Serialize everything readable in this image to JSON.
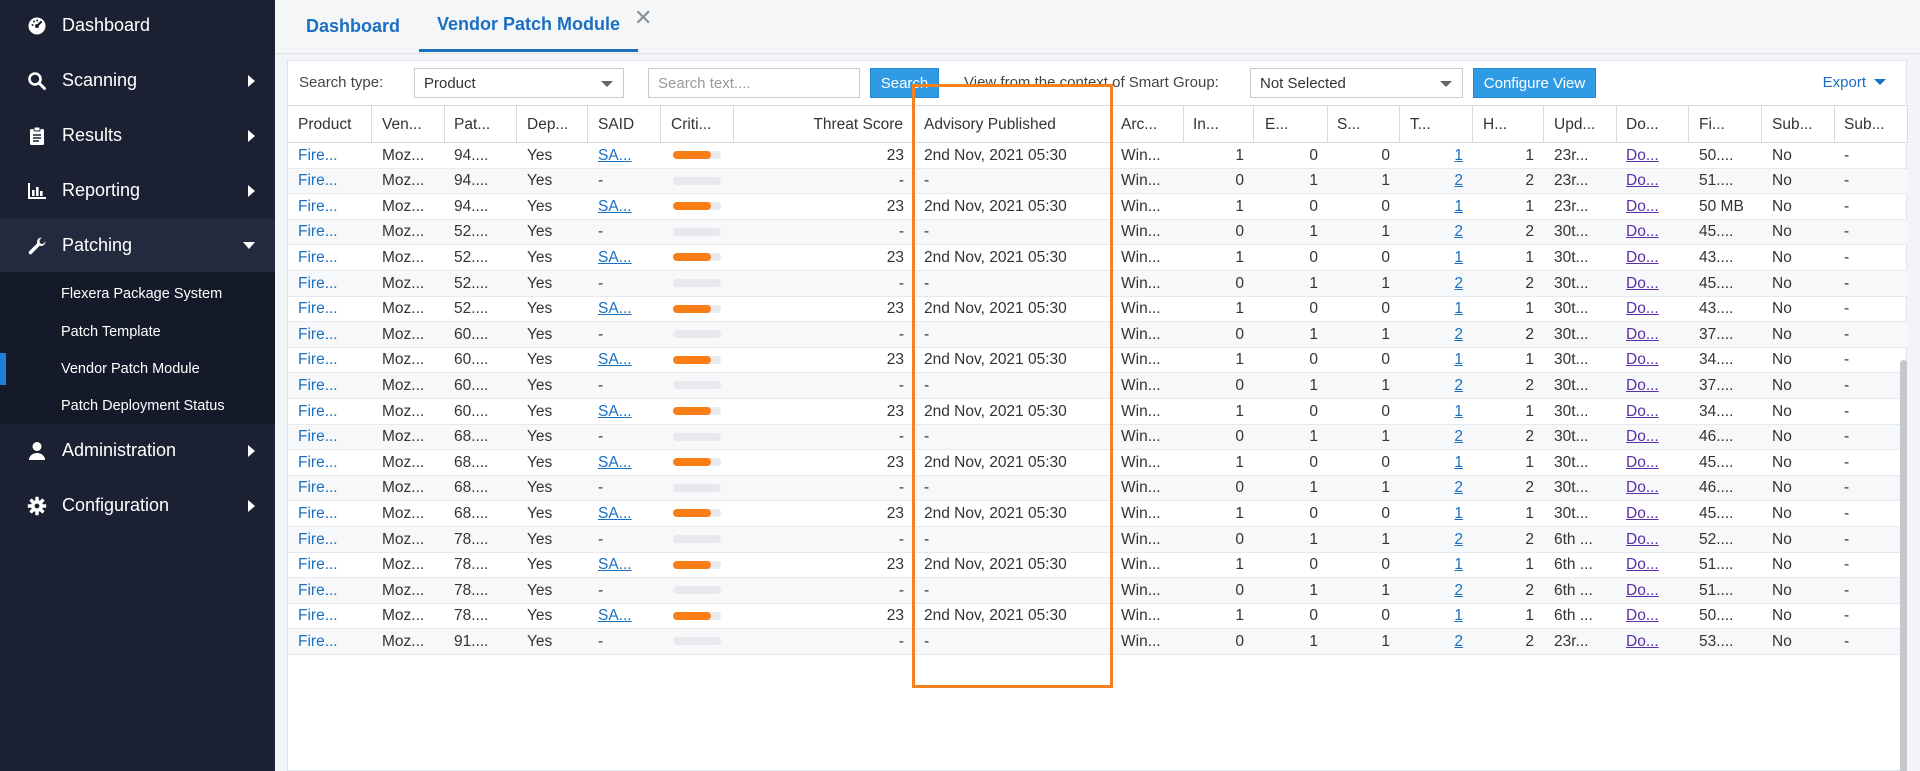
{
  "sidebar": {
    "items": [
      {
        "label": "Dashboard",
        "icon": "dashboard-icon"
      },
      {
        "label": "Scanning",
        "icon": "search-icon"
      },
      {
        "label": "Results",
        "icon": "clipboard-icon"
      },
      {
        "label": "Reporting",
        "icon": "bar-chart-icon"
      },
      {
        "label": "Patching",
        "icon": "wrench-icon"
      },
      {
        "label": "Administration",
        "icon": "user-icon"
      },
      {
        "label": "Configuration",
        "icon": "gear-icon"
      }
    ],
    "patching_sub": [
      {
        "label": "Flexera Package System"
      },
      {
        "label": "Patch Template"
      },
      {
        "label": "Vendor Patch Module"
      },
      {
        "label": "Patch Deployment Status"
      }
    ]
  },
  "tabs": [
    {
      "label": "Dashboard"
    },
    {
      "label": "Vendor Patch Module"
    }
  ],
  "toolbar": {
    "search_type_label": "Search type:",
    "search_type_value": "Product",
    "search_placeholder": "Search text....",
    "search_button": "Search",
    "context_label": "View from the context of Smart Group:",
    "smart_group_value": "Not Selected",
    "configure_button": "Configure View",
    "export_label": "Export"
  },
  "grid": {
    "columns": [
      "Product",
      "Ven...",
      "Pat...",
      "Dep...",
      "SAID",
      "Criti...",
      "Threat Score",
      "Advisory Published",
      "Arc...",
      "In...",
      "E...",
      "S...",
      "T...",
      "H...",
      "Upd...",
      "Do...",
      "Fi...",
      "Sub...",
      "Sub..."
    ],
    "rows": [
      {
        "product": "Fire...",
        "vendor": "Moz...",
        "patch": "94....",
        "dep": "Yes",
        "said": "SA...",
        "crit": 0.8,
        "threat": "23",
        "advisory": "2nd Nov, 2021 05:30",
        "arch": "Win...",
        "in": "1",
        "e": "0",
        "s": "0",
        "t": "1",
        "h": "1",
        "upd": "23r...",
        "do": "Do...",
        "fi": "50....",
        "sub1": "No",
        "sub2": "-"
      },
      {
        "product": "Fire...",
        "vendor": "Moz...",
        "patch": "94....",
        "dep": "Yes",
        "said": "-",
        "crit": 0,
        "threat": "-",
        "advisory": "-",
        "arch": "Win...",
        "in": "0",
        "e": "1",
        "s": "1",
        "t": "2",
        "h": "2",
        "upd": "23r...",
        "do": "Do...",
        "fi": "51....",
        "sub1": "No",
        "sub2": "-"
      },
      {
        "product": "Fire...",
        "vendor": "Moz...",
        "patch": "94....",
        "dep": "Yes",
        "said": "SA...",
        "crit": 0.8,
        "threat": "23",
        "advisory": "2nd Nov, 2021 05:30",
        "arch": "Win...",
        "in": "1",
        "e": "0",
        "s": "0",
        "t": "1",
        "h": "1",
        "upd": "23r...",
        "do": "Do...",
        "fi": "50 MB",
        "sub1": "No",
        "sub2": "-"
      },
      {
        "product": "Fire...",
        "vendor": "Moz...",
        "patch": "52....",
        "dep": "Yes",
        "said": "-",
        "crit": 0,
        "threat": "-",
        "advisory": "-",
        "arch": "Win...",
        "in": "0",
        "e": "1",
        "s": "1",
        "t": "2",
        "h": "2",
        "upd": "30t...",
        "do": "Do...",
        "fi": "45....",
        "sub1": "No",
        "sub2": "-"
      },
      {
        "product": "Fire...",
        "vendor": "Moz...",
        "patch": "52....",
        "dep": "Yes",
        "said": "SA...",
        "crit": 0.8,
        "threat": "23",
        "advisory": "2nd Nov, 2021 05:30",
        "arch": "Win...",
        "in": "1",
        "e": "0",
        "s": "0",
        "t": "1",
        "h": "1",
        "upd": "30t...",
        "do": "Do...",
        "fi": "43....",
        "sub1": "No",
        "sub2": "-"
      },
      {
        "product": "Fire...",
        "vendor": "Moz...",
        "patch": "52....",
        "dep": "Yes",
        "said": "-",
        "crit": 0,
        "threat": "-",
        "advisory": "-",
        "arch": "Win...",
        "in": "0",
        "e": "1",
        "s": "1",
        "t": "2",
        "h": "2",
        "upd": "30t...",
        "do": "Do...",
        "fi": "45....",
        "sub1": "No",
        "sub2": "-"
      },
      {
        "product": "Fire...",
        "vendor": "Moz...",
        "patch": "52....",
        "dep": "Yes",
        "said": "SA...",
        "crit": 0.8,
        "threat": "23",
        "advisory": "2nd Nov, 2021 05:30",
        "arch": "Win...",
        "in": "1",
        "e": "0",
        "s": "0",
        "t": "1",
        "h": "1",
        "upd": "30t...",
        "do": "Do...",
        "fi": "43....",
        "sub1": "No",
        "sub2": "-"
      },
      {
        "product": "Fire...",
        "vendor": "Moz...",
        "patch": "60....",
        "dep": "Yes",
        "said": "-",
        "crit": 0,
        "threat": "-",
        "advisory": "-",
        "arch": "Win...",
        "in": "0",
        "e": "1",
        "s": "1",
        "t": "2",
        "h": "2",
        "upd": "30t...",
        "do": "Do...",
        "fi": "37....",
        "sub1": "No",
        "sub2": "-"
      },
      {
        "product": "Fire...",
        "vendor": "Moz...",
        "patch": "60....",
        "dep": "Yes",
        "said": "SA...",
        "crit": 0.8,
        "threat": "23",
        "advisory": "2nd Nov, 2021 05:30",
        "arch": "Win...",
        "in": "1",
        "e": "0",
        "s": "0",
        "t": "1",
        "h": "1",
        "upd": "30t...",
        "do": "Do...",
        "fi": "34....",
        "sub1": "No",
        "sub2": "-"
      },
      {
        "product": "Fire...",
        "vendor": "Moz...",
        "patch": "60....",
        "dep": "Yes",
        "said": "-",
        "crit": 0,
        "threat": "-",
        "advisory": "-",
        "arch": "Win...",
        "in": "0",
        "e": "1",
        "s": "1",
        "t": "2",
        "h": "2",
        "upd": "30t...",
        "do": "Do...",
        "fi": "37....",
        "sub1": "No",
        "sub2": "-"
      },
      {
        "product": "Fire...",
        "vendor": "Moz...",
        "patch": "60....",
        "dep": "Yes",
        "said": "SA...",
        "crit": 0.8,
        "threat": "23",
        "advisory": "2nd Nov, 2021 05:30",
        "arch": "Win...",
        "in": "1",
        "e": "0",
        "s": "0",
        "t": "1",
        "h": "1",
        "upd": "30t...",
        "do": "Do...",
        "fi": "34....",
        "sub1": "No",
        "sub2": "-"
      },
      {
        "product": "Fire...",
        "vendor": "Moz...",
        "patch": "68....",
        "dep": "Yes",
        "said": "-",
        "crit": 0,
        "threat": "-",
        "advisory": "-",
        "arch": "Win...",
        "in": "0",
        "e": "1",
        "s": "1",
        "t": "2",
        "h": "2",
        "upd": "30t...",
        "do": "Do...",
        "fi": "46....",
        "sub1": "No",
        "sub2": "-"
      },
      {
        "product": "Fire...",
        "vendor": "Moz...",
        "patch": "68....",
        "dep": "Yes",
        "said": "SA...",
        "crit": 0.8,
        "threat": "23",
        "advisory": "2nd Nov, 2021 05:30",
        "arch": "Win...",
        "in": "1",
        "e": "0",
        "s": "0",
        "t": "1",
        "h": "1",
        "upd": "30t...",
        "do": "Do...",
        "fi": "45....",
        "sub1": "No",
        "sub2": "-"
      },
      {
        "product": "Fire...",
        "vendor": "Moz...",
        "patch": "68....",
        "dep": "Yes",
        "said": "-",
        "crit": 0,
        "threat": "-",
        "advisory": "-",
        "arch": "Win...",
        "in": "0",
        "e": "1",
        "s": "1",
        "t": "2",
        "h": "2",
        "upd": "30t...",
        "do": "Do...",
        "fi": "46....",
        "sub1": "No",
        "sub2": "-"
      },
      {
        "product": "Fire...",
        "vendor": "Moz...",
        "patch": "68....",
        "dep": "Yes",
        "said": "SA...",
        "crit": 0.8,
        "threat": "23",
        "advisory": "2nd Nov, 2021 05:30",
        "arch": "Win...",
        "in": "1",
        "e": "0",
        "s": "0",
        "t": "1",
        "h": "1",
        "upd": "30t...",
        "do": "Do...",
        "fi": "45....",
        "sub1": "No",
        "sub2": "-"
      },
      {
        "product": "Fire...",
        "vendor": "Moz...",
        "patch": "78....",
        "dep": "Yes",
        "said": "-",
        "crit": 0,
        "threat": "-",
        "advisory": "-",
        "arch": "Win...",
        "in": "0",
        "e": "1",
        "s": "1",
        "t": "2",
        "h": "2",
        "upd": "6th ...",
        "do": "Do...",
        "fi": "52....",
        "sub1": "No",
        "sub2": "-"
      },
      {
        "product": "Fire...",
        "vendor": "Moz...",
        "patch": "78....",
        "dep": "Yes",
        "said": "SA...",
        "crit": 0.8,
        "threat": "23",
        "advisory": "2nd Nov, 2021 05:30",
        "arch": "Win...",
        "in": "1",
        "e": "0",
        "s": "0",
        "t": "1",
        "h": "1",
        "upd": "6th ...",
        "do": "Do...",
        "fi": "51....",
        "sub1": "No",
        "sub2": "-"
      },
      {
        "product": "Fire...",
        "vendor": "Moz...",
        "patch": "78....",
        "dep": "Yes",
        "said": "-",
        "crit": 0,
        "threat": "-",
        "advisory": "-",
        "arch": "Win...",
        "in": "0",
        "e": "1",
        "s": "1",
        "t": "2",
        "h": "2",
        "upd": "6th ...",
        "do": "Do...",
        "fi": "51....",
        "sub1": "No",
        "sub2": "-"
      },
      {
        "product": "Fire...",
        "vendor": "Moz...",
        "patch": "78....",
        "dep": "Yes",
        "said": "SA...",
        "crit": 0.8,
        "threat": "23",
        "advisory": "2nd Nov, 2021 05:30",
        "arch": "Win...",
        "in": "1",
        "e": "0",
        "s": "0",
        "t": "1",
        "h": "1",
        "upd": "6th ...",
        "do": "Do...",
        "fi": "50....",
        "sub1": "No",
        "sub2": "-"
      },
      {
        "product": "Fire...",
        "vendor": "Moz...",
        "patch": "91....",
        "dep": "Yes",
        "said": "-",
        "crit": 0,
        "threat": "-",
        "advisory": "-",
        "arch": "Win...",
        "in": "0",
        "e": "1",
        "s": "1",
        "t": "2",
        "h": "2",
        "upd": "23r...",
        "do": "Do...",
        "fi": "53....",
        "sub1": "No",
        "sub2": "-"
      }
    ]
  },
  "colors": {
    "sidebar_bg": "#1b2133",
    "accent": "#1b6fc2",
    "button": "#2f9be5",
    "highlight": "#f58220",
    "criticality": "#fb7d16"
  }
}
